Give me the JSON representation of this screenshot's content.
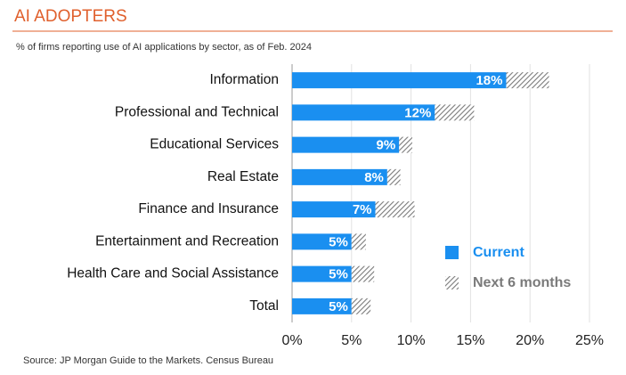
{
  "chart_data": {
    "type": "stacked-barh",
    "title": "AI ADOPTERS",
    "subtitle": "% of firms reporting use of AI applications by sector, as of Feb. 2024",
    "source": "Source: JP Morgan Guide to the Markets. Census Bureau",
    "categories": [
      "Information",
      "Professional and Technical",
      "Educational Services",
      "Real Estate",
      "Finance and Insurance",
      "Entertainment and Recreation",
      "Health Care and Social Assistance",
      "Total"
    ],
    "series": [
      {
        "name": "Current",
        "color": "#1a8ff0",
        "values": [
          18,
          12,
          9,
          8,
          7,
          5,
          5,
          5
        ],
        "value_labels": [
          "18%",
          "12%",
          "9%",
          "8%",
          "7%",
          "5%",
          "5%",
          "5%"
        ]
      },
      {
        "name": "Next 6 months",
        "color": "#7a7a7a",
        "values": [
          3.6,
          3.3,
          1.1,
          1.1,
          3.3,
          1.2,
          1.9,
          1.6
        ]
      }
    ],
    "xlim": [
      0,
      25
    ],
    "xticks": [
      {
        "value": 0,
        "label": "0%"
      },
      {
        "value": 5,
        "label": "5%"
      },
      {
        "value": 10,
        "label": "10%"
      },
      {
        "value": 15,
        "label": "15%"
      },
      {
        "value": 20,
        "label": "20%"
      },
      {
        "value": 25,
        "label": "25%"
      }
    ],
    "grid": true
  }
}
